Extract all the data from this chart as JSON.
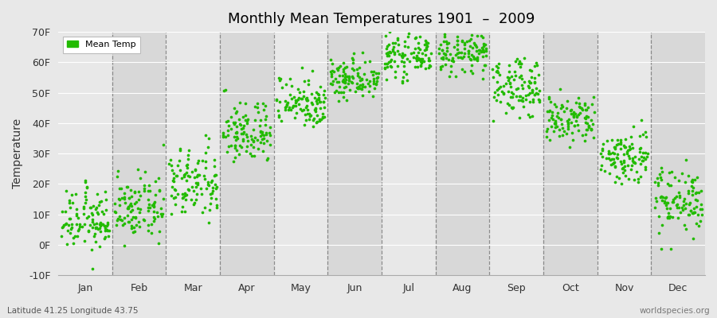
{
  "title": "Monthly Mean Temperatures 1901  –  2009",
  "ylabel": "Temperature",
  "subtitle_left": "Latitude 41.25 Longitude 43.75",
  "subtitle_right": "worldspecies.org",
  "legend_label": "Mean Temp",
  "ylim": [
    -10,
    70
  ],
  "yticks": [
    -10,
    0,
    10,
    20,
    30,
    40,
    50,
    60,
    70
  ],
  "ytick_labels": [
    "-10F",
    "0F",
    "10F",
    "20F",
    "30F",
    "40F",
    "50F",
    "60F",
    "70F"
  ],
  "months": [
    "Jan",
    "Feb",
    "Mar",
    "Apr",
    "May",
    "Jun",
    "Jul",
    "Aug",
    "Sep",
    "Oct",
    "Nov",
    "Dec"
  ],
  "monthly_means": [
    8.0,
    12.0,
    20.0,
    37.0,
    47.0,
    55.0,
    62.0,
    63.0,
    52.0,
    41.0,
    29.0,
    15.0
  ],
  "monthly_stds": [
    5.0,
    5.0,
    6.0,
    5.0,
    4.0,
    3.5,
    3.0,
    3.0,
    4.5,
    4.0,
    4.5,
    5.5
  ],
  "dot_color": "#22bb00",
  "bg_color": "#e8e8e8",
  "alt_bg_color": "#d8d8d8",
  "n_years": 109,
  "seed": 12345
}
